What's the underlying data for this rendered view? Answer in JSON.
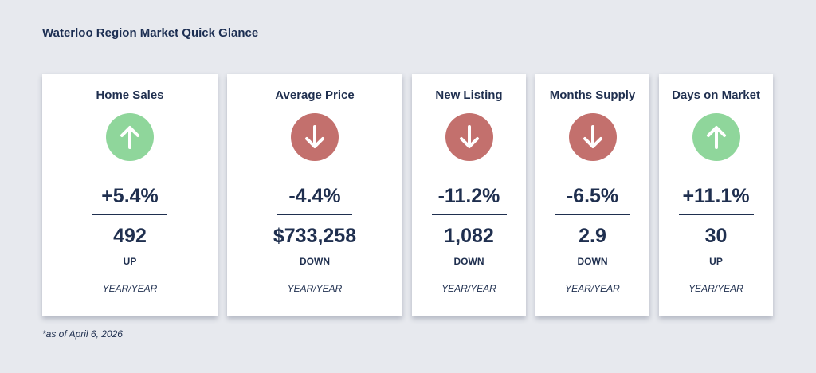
{
  "title": "Waterloo Region Market Quick Glance",
  "footnote": "*as of April 6, 2026",
  "colors": {
    "up": "#8fd69b",
    "down": "#c3706d",
    "text": "#1f2f4f",
    "background": "#e7e9ee"
  },
  "cards": [
    {
      "label": "Home Sales",
      "direction_icon": "arrow-up-icon",
      "change": "+5.4%",
      "value": "492",
      "direction": "UP",
      "period": "YEAR/YEAR"
    },
    {
      "label": "Average Price",
      "direction_icon": "arrow-down-icon",
      "change": "-4.4%",
      "value": "$733,258",
      "direction": "DOWN",
      "period": "YEAR/YEAR"
    },
    {
      "label": "New Listing",
      "direction_icon": "arrow-down-icon",
      "change": "-11.2%",
      "value": "1,082",
      "direction": "DOWN",
      "period": "YEAR/YEAR"
    },
    {
      "label": "Months Supply",
      "direction_icon": "arrow-down-icon",
      "change": "-6.5%",
      "value": "2.9",
      "direction": "DOWN",
      "period": "YEAR/YEAR"
    },
    {
      "label": "Days on Market",
      "direction_icon": "arrow-up-icon",
      "change": "+11.1%",
      "value": "30",
      "direction": "UP",
      "period": "YEAR/YEAR"
    }
  ]
}
